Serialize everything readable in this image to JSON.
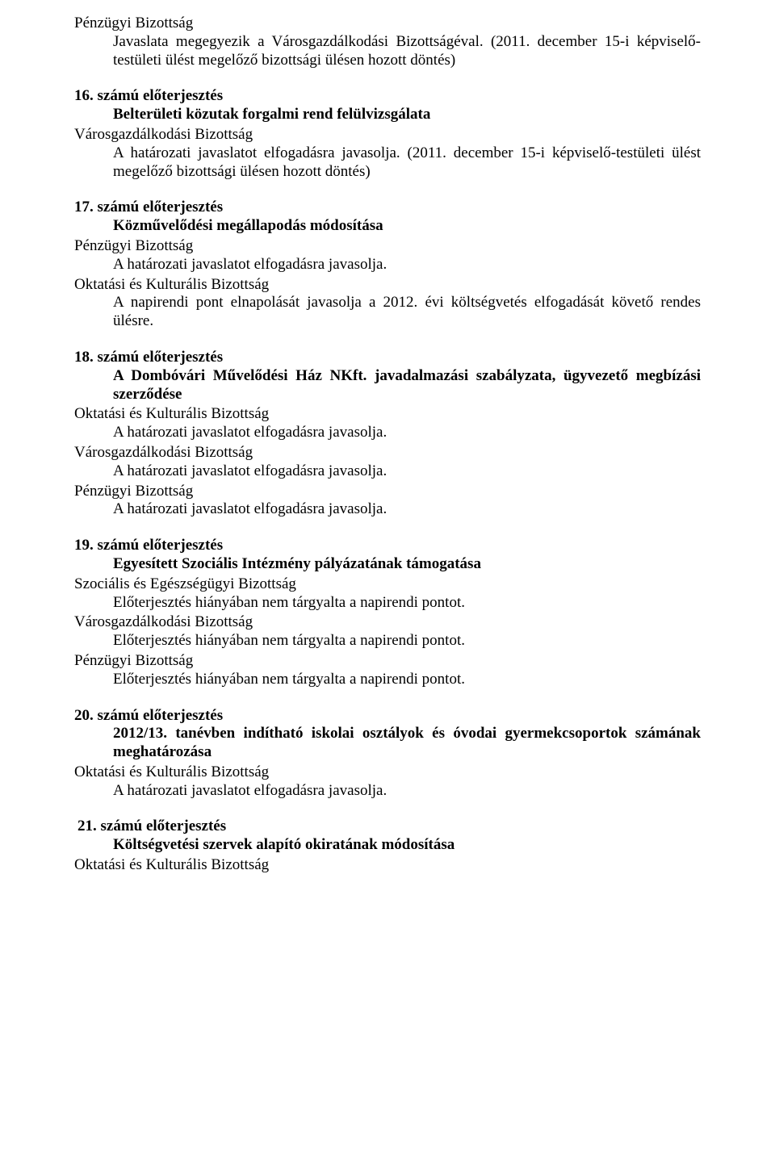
{
  "item15_top": {
    "l1": "Pénzügyi Bizottság",
    "l2": "Javaslata megegyezik a Városgazdálkodási Bizottságéval. (2011. december 15-i képviselő-testületi ülést megelőző bizottsági ülésen hozott döntés)"
  },
  "item16": {
    "number": "16. számú előterjesztés",
    "title": "Belterületi közutak forgalmi rend felülvizsgálata",
    "c1": "Városgazdálkodási Bizottság",
    "c1body": "A határozati javaslatot elfogadásra javasolja. (2011. december 15-i képviselő-testületi ülést megelőző bizottsági ülésen hozott döntés)"
  },
  "item17": {
    "number": "17. számú előterjesztés",
    "title": "Közművelődési megállapodás módosítása",
    "c1": "Pénzügyi Bizottság",
    "c1body": "A határozati javaslatot elfogadásra javasolja.",
    "c2": "Oktatási és Kulturális Bizottság",
    "c2body": "A napirendi pont elnapolását javasolja a 2012. évi költségvetés elfogadását követő rendes ülésre."
  },
  "item18": {
    "number": "18. számú előterjesztés",
    "title": "A Dombóvári Művelődési Ház NKft. javadalmazási szabályzata, ügyvezető megbízási szerződése",
    "c1": "Oktatási és Kulturális Bizottság",
    "c1body": "A határozati javaslatot elfogadásra javasolja.",
    "c2": "Városgazdálkodási Bizottság",
    "c2body": "A határozati javaslatot elfogadásra javasolja.",
    "c3": "Pénzügyi Bizottság",
    "c3body": "A határozati javaslatot elfogadásra javasolja."
  },
  "item19": {
    "number": "19. számú előterjesztés",
    "title": "Egyesített Szociális Intézmény pályázatának támogatása",
    "c1": "Szociális és Egészségügyi Bizottság",
    "c1body": "Előterjesztés hiányában nem tárgyalta a napirendi pontot.",
    "c2": "Városgazdálkodási Bizottság",
    "c2body": "Előterjesztés hiányában nem tárgyalta a napirendi pontot.",
    "c3": "Pénzügyi Bizottság",
    "c3body": "Előterjesztés hiányában nem tárgyalta a napirendi pontot."
  },
  "item20": {
    "number": "20. számú előterjesztés",
    "title": "2012/13. tanévben indítható iskolai osztályok és óvodai gyermekcsoportok számának meghatározása",
    "c1": "Oktatási és Kulturális Bizottság",
    "c1body": "A határozati javaslatot elfogadásra javasolja."
  },
  "item21": {
    "number": " 21. számú előterjesztés",
    "title": "Költségvetési szervek alapító okiratának módosítása",
    "c1": "Oktatási és Kulturális Bizottság"
  }
}
